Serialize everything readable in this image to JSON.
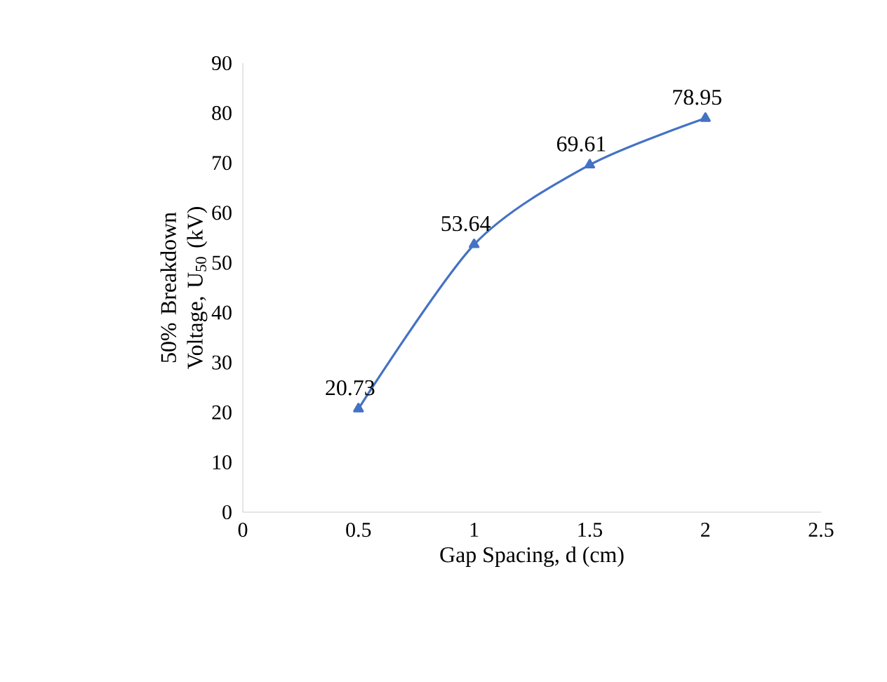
{
  "chart_data": {
    "type": "line",
    "xlabel": "Gap Spacing, d (cm)",
    "ylabel": "50% Breakdown Voltage, U$_{50}$ (kV)",
    "x": [
      0.5,
      1,
      1.5,
      2
    ],
    "series": [
      {
        "color": "#4472c4",
        "values": [
          20.73,
          53.64,
          69.61,
          78.95
        ],
        "value_labels": [
          "20.73",
          "53.64",
          "69.61",
          "78.95"
        ]
      }
    ],
    "xlim": [
      0,
      2.5
    ],
    "ylim": [
      0,
      90
    ],
    "xticks": [
      0,
      0.5,
      1,
      1.5,
      2,
      2.5
    ],
    "yticks": [
      0,
      10,
      20,
      30,
      40,
      50,
      60,
      70,
      80,
      90
    ],
    "marker": "triangle",
    "line_style": "solid",
    "grid": false
  }
}
